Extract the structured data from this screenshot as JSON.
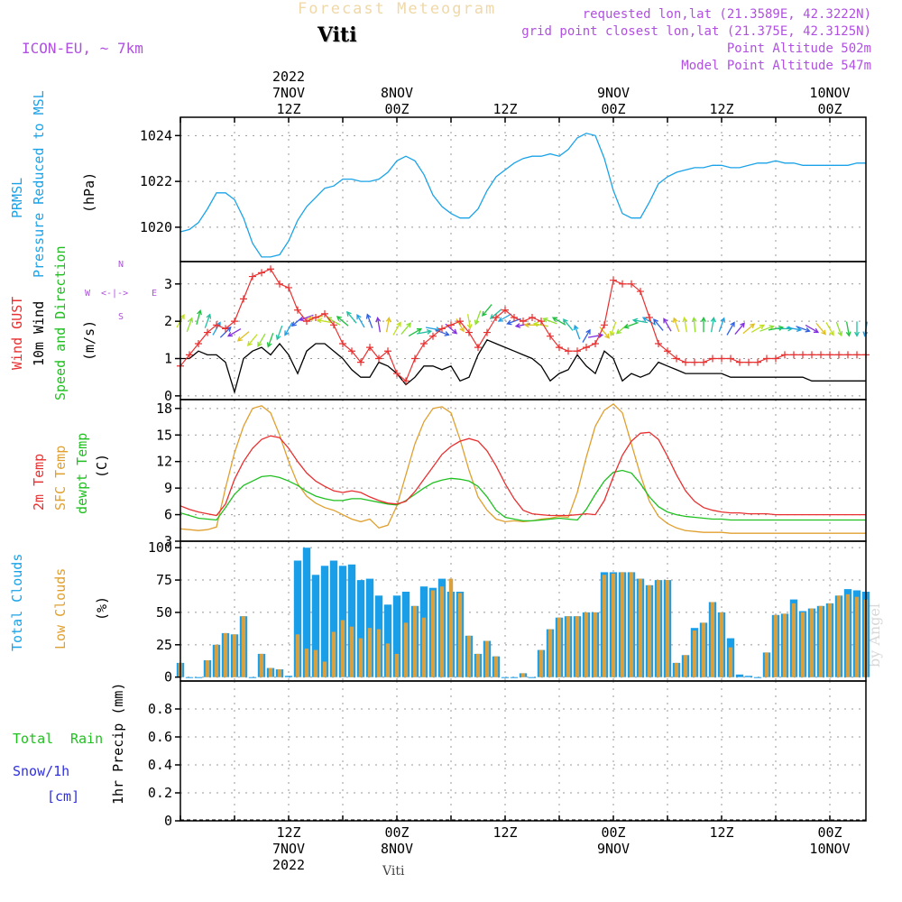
{
  "header": {
    "title": "Forecast Meteogram",
    "station": "Viti",
    "model": "ICON-EU, ~ 7km",
    "requested": "requested lon,lat (21.3589E, 42.3222N)",
    "grid_point": "grid point closest lon,lat (21.375E, 42.3125N)",
    "point_altitude": "Point Altitude 502m",
    "model_altitude": "Model Point Altitude 547m",
    "footer_station": "Viti",
    "watermark": "by Angel"
  },
  "colors": {
    "pressure": "#1aa3e8",
    "gust": "#e83030",
    "wind": "#000000",
    "temp2m": "#e83030",
    "sfc": "#e0a030",
    "dewpt": "#20c020",
    "total_clouds": "#1a9ee8",
    "low_clouds": "#d9a040",
    "rain": "#20c020",
    "snow": "#3030e0",
    "purple": "#b050e0"
  },
  "time_axis": {
    "top_labels": [
      {
        "t": 12,
        "lines": [
          "2022",
          "7NOV",
          "12Z"
        ]
      },
      {
        "t": 24,
        "lines": [
          "8NOV",
          "00Z"
        ]
      },
      {
        "t": 36,
        "lines": [
          "12Z"
        ]
      },
      {
        "t": 48,
        "lines": [
          "9NOV",
          "00Z"
        ]
      },
      {
        "t": 60,
        "lines": [
          "12Z"
        ]
      },
      {
        "t": 72,
        "lines": [
          "10NOV",
          "00Z"
        ]
      }
    ],
    "bottom_labels": [
      {
        "t": 12,
        "lines": [
          "12Z",
          "7NOV",
          "2022"
        ]
      },
      {
        "t": 24,
        "lines": [
          "00Z",
          "8NOV"
        ]
      },
      {
        "t": 36,
        "lines": [
          "12Z"
        ]
      },
      {
        "t": 48,
        "lines": [
          "00Z",
          "9NOV"
        ]
      },
      {
        "t": 60,
        "lines": [
          "12Z"
        ]
      },
      {
        "t": 72,
        "lines": [
          "00Z",
          "10NOV"
        ]
      }
    ]
  },
  "panel_labels": {
    "pressure": [
      "PRMSL",
      "Pressure Reduced to MSL",
      "(hPa)"
    ],
    "wind": [
      "Wind GUST",
      "10m Wind",
      "Speed and Direction",
      "(m/s)"
    ],
    "temp": [
      "2m Temp",
      "SFC Temp",
      "dewpt Temp",
      "(C)"
    ],
    "cloud": [
      "Total Clouds",
      "Low Clouds",
      "(%)"
    ],
    "precip": [
      "Total",
      "Rain",
      "Snow/1h",
      "[cm]",
      "1hr Precip (mm)"
    ],
    "compass": {
      "n": "N",
      "s": "S",
      "w": "W",
      "e": "E",
      "arrow": "<-|->"
    }
  },
  "chart_data": [
    {
      "type": "line",
      "name": "PRMSL",
      "ylim": [
        1018.5,
        1024.8
      ],
      "yticks": [
        1020,
        1022,
        1024
      ],
      "x": [
        0,
        1,
        2,
        3,
        4,
        5,
        6,
        7,
        8,
        9,
        10,
        11,
        12,
        13,
        14,
        15,
        16,
        17,
        18,
        19,
        20,
        21,
        22,
        23,
        24,
        25,
        26,
        27,
        28,
        29,
        30,
        31,
        32,
        33,
        34,
        35,
        36,
        37,
        38,
        39,
        40,
        41,
        42,
        43,
        44,
        45,
        46,
        47,
        48,
        49,
        50,
        51,
        52,
        53,
        54,
        55,
        56,
        57,
        58,
        59,
        60,
        61,
        62,
        63,
        64,
        65,
        66,
        67,
        68,
        69,
        70,
        71,
        72,
        73,
        74,
        75,
        76
      ],
      "values": [
        1019.8,
        1019.9,
        1020.2,
        1020.8,
        1021.5,
        1021.5,
        1021.2,
        1020.4,
        1019.3,
        1018.7,
        1018.7,
        1018.8,
        1019.4,
        1020.3,
        1020.9,
        1021.3,
        1021.7,
        1021.8,
        1022.1,
        1022.1,
        1022.0,
        1022.0,
        1022.1,
        1022.4,
        1022.9,
        1023.1,
        1022.9,
        1022.3,
        1021.4,
        1020.9,
        1020.6,
        1020.4,
        1020.4,
        1020.8,
        1021.6,
        1022.2,
        1022.5,
        1022.8,
        1023.0,
        1023.1,
        1023.1,
        1023.2,
        1023.1,
        1023.4,
        1023.9,
        1024.1,
        1024.0,
        1023.0,
        1021.6,
        1020.6,
        1020.4,
        1020.4,
        1021.1,
        1021.9,
        1022.2,
        1022.4,
        1022.5,
        1022.6,
        1022.6,
        1022.7,
        1022.7,
        1022.6,
        1022.6,
        1022.7,
        1022.8,
        1022.8,
        1022.9,
        1022.8,
        1022.8,
        1022.7,
        1022.7,
        1022.7,
        1022.7,
        1022.7,
        1022.7,
        1022.8,
        1022.8
      ]
    },
    {
      "type": "line",
      "name": "Wind",
      "ylim": [
        -0.1,
        3.6
      ],
      "yticks": [
        0,
        1,
        2,
        3
      ],
      "x": [
        0,
        1,
        2,
        3,
        4,
        5,
        6,
        7,
        8,
        9,
        10,
        11,
        12,
        13,
        14,
        15,
        16,
        17,
        18,
        19,
        20,
        21,
        22,
        23,
        24,
        25,
        26,
        27,
        28,
        29,
        30,
        31,
        32,
        33,
        34,
        35,
        36,
        37,
        38,
        39,
        40,
        41,
        42,
        43,
        44,
        45,
        46,
        47,
        48,
        49,
        50,
        51,
        52,
        53,
        54,
        55,
        56,
        57,
        58,
        59,
        60,
        61,
        62,
        63,
        64,
        65,
        66,
        67,
        68,
        69,
        70,
        71,
        72,
        73,
        74,
        75,
        76
      ],
      "gust": [
        0.8,
        1.1,
        1.4,
        1.7,
        1.9,
        1.8,
        2.0,
        2.6,
        3.2,
        3.3,
        3.4,
        3.0,
        2.9,
        2.3,
        2.0,
        2.1,
        2.2,
        1.9,
        1.4,
        1.2,
        0.9,
        1.3,
        1.0,
        1.2,
        0.6,
        0.4,
        1.0,
        1.4,
        1.6,
        1.8,
        1.9,
        2.0,
        1.7,
        1.3,
        1.7,
        2.1,
        2.3,
        2.1,
        2.0,
        2.1,
        2.0,
        1.6,
        1.3,
        1.2,
        1.2,
        1.3,
        1.4,
        1.9,
        3.1,
        3.0,
        3.0,
        2.8,
        2.1,
        1.4,
        1.2,
        1.0,
        0.9,
        0.9,
        0.9,
        1.0,
        1.0,
        1.0,
        0.9,
        0.9,
        0.9,
        1.0,
        1.0,
        1.1,
        1.1,
        1.1,
        1.1,
        1.1,
        1.1,
        1.1,
        1.1,
        1.1,
        1.1
      ],
      "wind": [
        1.0,
        1.0,
        1.2,
        1.1,
        1.1,
        0.9,
        0.1,
        1.0,
        1.2,
        1.3,
        1.1,
        1.4,
        1.1,
        0.6,
        1.2,
        1.4,
        1.4,
        1.2,
        1.0,
        0.7,
        0.5,
        0.5,
        0.9,
        0.8,
        0.6,
        0.3,
        0.5,
        0.8,
        0.8,
        0.7,
        0.8,
        0.4,
        0.5,
        1.1,
        1.5,
        1.4,
        1.3,
        1.2,
        1.1,
        1.0,
        0.8,
        0.4,
        0.6,
        0.7,
        1.1,
        0.8,
        0.6,
        1.2,
        1.0,
        0.4,
        0.6,
        0.5,
        0.6,
        0.9,
        0.8,
        0.7,
        0.6,
        0.6,
        0.6,
        0.6,
        0.6,
        0.5,
        0.5,
        0.5,
        0.5,
        0.5,
        0.5,
        0.5,
        0.5,
        0.5,
        0.4,
        0.4,
        0.4,
        0.4,
        0.4,
        0.4,
        0.4
      ],
      "vector_speed": [
        2.0,
        1.9,
        2.1,
        2.0,
        1.8,
        1.7,
        1.7,
        1.6,
        1.5,
        1.5,
        1.5,
        1.7,
        1.8,
        2.0,
        2.1,
        2.1,
        2.0,
        2.0,
        2.0,
        2.1,
        2.0,
        2.0,
        1.9,
        1.9,
        1.8,
        1.8,
        1.7,
        1.7,
        1.8,
        1.7,
        1.8,
        1.9,
        2.0,
        2.1,
        2.3,
        2.2,
        2.1,
        2.0,
        1.9,
        1.9,
        1.9,
        2.0,
        2.0,
        1.9,
        1.7,
        1.6,
        1.6,
        1.7,
        1.8,
        1.8,
        1.9,
        2.0,
        2.0,
        1.9,
        1.9,
        1.9,
        1.9,
        1.9,
        1.9,
        1.9,
        1.9,
        1.8,
        1.8,
        1.8,
        1.8,
        1.8,
        1.8,
        1.8,
        1.8,
        1.8,
        1.8,
        1.8,
        1.8,
        1.8,
        1.8,
        1.8,
        1.8
      ],
      "vector_dir": [
        30,
        20,
        15,
        20,
        30,
        45,
        240,
        230,
        220,
        210,
        200,
        200,
        210,
        230,
        250,
        260,
        280,
        300,
        310,
        320,
        330,
        340,
        350,
        10,
        30,
        40,
        60,
        80,
        100,
        110,
        130,
        150,
        170,
        200,
        220,
        230,
        240,
        250,
        260,
        270,
        280,
        290,
        300,
        320,
        340,
        30,
        80,
        140,
        200,
        230,
        250,
        280,
        300,
        320,
        330,
        340,
        350,
        355,
        0,
        10,
        20,
        30,
        40,
        50,
        60,
        70,
        80,
        90,
        100,
        110,
        120,
        140,
        150,
        160,
        170,
        180,
        190
      ]
    },
    {
      "type": "line",
      "name": "Temperature",
      "ylim": [
        3,
        19
      ],
      "yticks": [
        3,
        6,
        9,
        12,
        15,
        18
      ],
      "x": [
        0,
        1,
        2,
        3,
        4,
        5,
        6,
        7,
        8,
        9,
        10,
        11,
        12,
        13,
        14,
        15,
        16,
        17,
        18,
        19,
        20,
        21,
        22,
        23,
        24,
        25,
        26,
        27,
        28,
        29,
        30,
        31,
        32,
        33,
        34,
        35,
        36,
        37,
        38,
        39,
        40,
        41,
        42,
        43,
        44,
        45,
        46,
        47,
        48,
        49,
        50,
        51,
        52,
        53,
        54,
        55,
        56,
        57,
        58,
        59,
        60,
        61,
        62,
        63,
        64,
        65,
        66,
        67,
        68,
        69,
        70,
        71,
        72,
        73,
        74,
        75,
        76
      ],
      "temp2m": [
        7.0,
        6.6,
        6.3,
        6.1,
        5.9,
        7.2,
        10.0,
        12.0,
        13.5,
        14.5,
        14.9,
        14.7,
        13.5,
        12.0,
        10.7,
        9.8,
        9.2,
        8.7,
        8.5,
        8.7,
        8.5,
        8.0,
        7.6,
        7.3,
        7.2,
        7.5,
        8.6,
        10.0,
        11.4,
        12.8,
        13.7,
        14.3,
        14.6,
        14.3,
        13.2,
        11.5,
        9.5,
        7.8,
        6.5,
        6.1,
        6.0,
        5.9,
        5.9,
        5.9,
        6.0,
        6.1,
        6.0,
        7.6,
        10.3,
        12.7,
        14.3,
        15.2,
        15.3,
        14.5,
        12.6,
        10.5,
        8.7,
        7.5,
        6.8,
        6.5,
        6.3,
        6.2,
        6.2,
        6.1,
        6.1,
        6.1,
        6.0,
        6.0,
        6.0,
        6.0,
        6.0,
        6.0,
        6.0,
        6.0,
        6.0,
        6.0,
        6.0
      ],
      "sfc": [
        4.4,
        4.3,
        4.2,
        4.3,
        4.6,
        9.0,
        13.0,
        16.0,
        18.0,
        18.3,
        17.5,
        15.0,
        12.0,
        9.5,
        8.1,
        7.3,
        6.8,
        6.5,
        6.0,
        5.5,
        5.2,
        5.5,
        4.5,
        4.8,
        7.0,
        10.5,
        14.0,
        16.5,
        18.0,
        18.2,
        17.5,
        14.5,
        11.0,
        8.0,
        6.5,
        5.5,
        5.2,
        5.3,
        5.2,
        5.3,
        5.5,
        5.6,
        5.8,
        5.7,
        8.5,
        12.5,
        16.0,
        17.8,
        18.5,
        17.5,
        14.0,
        10.5,
        7.5,
        5.8,
        5.0,
        4.5,
        4.2,
        4.1,
        4.0,
        4.0,
        4.0,
        3.9,
        3.9,
        3.9,
        3.9,
        3.9,
        3.9,
        3.9,
        3.9,
        3.9,
        3.9,
        3.9,
        3.9,
        3.9,
        3.9,
        3.9,
        3.9
      ],
      "dewpt": [
        6.2,
        5.9,
        5.6,
        5.5,
        5.4,
        6.8,
        8.3,
        9.3,
        9.8,
        10.3,
        10.4,
        10.2,
        9.8,
        9.3,
        8.6,
        8.1,
        7.8,
        7.6,
        7.6,
        7.8,
        7.8,
        7.6,
        7.4,
        7.2,
        7.1,
        7.6,
        8.3,
        9.0,
        9.6,
        9.9,
        10.1,
        10.0,
        9.8,
        9.2,
        8.0,
        6.5,
        5.7,
        5.5,
        5.3,
        5.3,
        5.4,
        5.5,
        5.6,
        5.5,
        5.4,
        6.6,
        8.3,
        9.8,
        10.8,
        11.0,
        10.7,
        9.5,
        8.0,
        6.9,
        6.3,
        6.0,
        5.8,
        5.7,
        5.6,
        5.5,
        5.5,
        5.4,
        5.4,
        5.4,
        5.4,
        5.4,
        5.4,
        5.4,
        5.4,
        5.4,
        5.4,
        5.4,
        5.4,
        5.4,
        5.4,
        5.4,
        5.4
      ]
    },
    {
      "type": "bar",
      "name": "Clouds",
      "ylim": [
        -3,
        105
      ],
      "yticks": [
        0,
        25,
        50,
        75,
        100
      ],
      "x": [
        0,
        1,
        2,
        3,
        4,
        5,
        6,
        7,
        8,
        9,
        10,
        11,
        12,
        13,
        14,
        15,
        16,
        17,
        18,
        19,
        20,
        21,
        22,
        23,
        24,
        25,
        26,
        27,
        28,
        29,
        30,
        31,
        32,
        33,
        34,
        35,
        36,
        37,
        38,
        39,
        40,
        41,
        42,
        43,
        44,
        45,
        46,
        47,
        48,
        49,
        50,
        51,
        52,
        53,
        54,
        55,
        56,
        57,
        58,
        59,
        60,
        61,
        62,
        63,
        64,
        65,
        66,
        67,
        68,
        69,
        70,
        71,
        72,
        73,
        74,
        75,
        76
      ],
      "total": [
        11,
        0,
        0,
        13,
        25,
        34,
        33,
        47,
        0,
        18,
        7,
        6,
        1,
        90,
        100,
        79,
        86,
        90,
        86,
        87,
        75,
        76,
        63,
        56,
        63,
        66,
        55,
        70,
        69,
        76,
        66,
        66,
        32,
        18,
        28,
        16,
        0,
        0,
        3,
        0,
        21,
        37,
        46,
        47,
        47,
        50,
        50,
        81,
        81,
        81,
        81,
        76,
        71,
        75,
        75,
        11,
        17,
        38,
        42,
        58,
        50,
        30,
        2,
        1,
        0,
        19,
        48,
        49,
        60,
        51,
        53,
        55,
        57,
        63,
        68,
        67,
        66
      ],
      "low": [
        11,
        0,
        0,
        13,
        25,
        34,
        33,
        47,
        0,
        18,
        7,
        6,
        0,
        33,
        22,
        21,
        12,
        35,
        44,
        39,
        30,
        38,
        37,
        26,
        18,
        42,
        55,
        46,
        67,
        70,
        76,
        65,
        32,
        18,
        28,
        16,
        0,
        0,
        3,
        0,
        21,
        37,
        46,
        47,
        47,
        50,
        50,
        79,
        80,
        81,
        81,
        76,
        71,
        75,
        75,
        11,
        17,
        36,
        42,
        58,
        50,
        23,
        0,
        0,
        0,
        19,
        48,
        49,
        57,
        50,
        53,
        55,
        57,
        63,
        64,
        62,
        60
      ]
    },
    {
      "type": "line",
      "name": "Precip",
      "ylim": [
        0,
        1.0
      ],
      "yticks": [
        0,
        0.2,
        0.4,
        0.6,
        0.8
      ],
      "x": [
        0,
        76
      ],
      "values": [
        0,
        0
      ]
    }
  ]
}
